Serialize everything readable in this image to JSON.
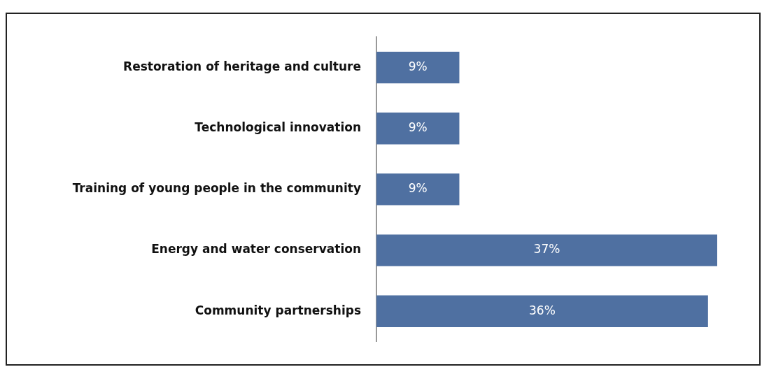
{
  "chart_data": {
    "type": "bar",
    "orientation": "horizontal",
    "tick_labels": "y",
    "categories": [
      "Restoration of heritage and culture",
      "Technological innovation",
      "Training of young people in the community",
      "Energy and water conservation",
      "Community partnerships"
    ],
    "values": [
      9,
      9,
      9,
      37,
      36
    ],
    "value_labels": [
      "9%",
      "9%",
      "9%",
      "37%",
      "36%"
    ],
    "color": "#4f70a1",
    "legend": false
  }
}
